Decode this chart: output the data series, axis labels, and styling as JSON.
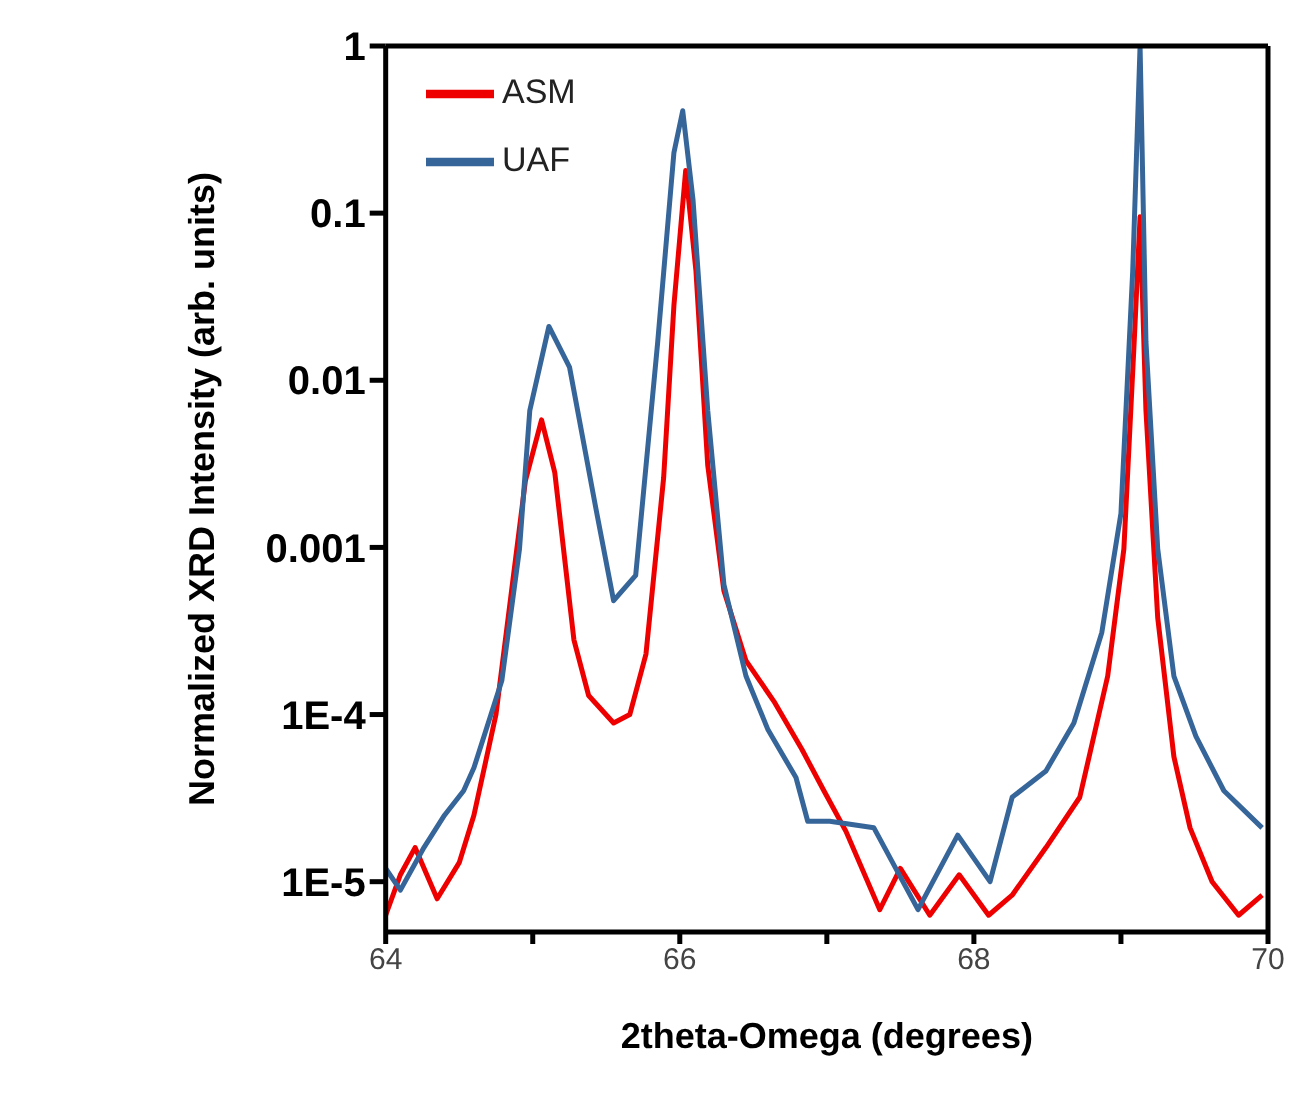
{
  "chart_data": {
    "type": "line",
    "xlabel": "2theta-Omega (degrees)",
    "ylabel": "Normalized XRD Intensity (arb. units)",
    "log": "y",
    "xlim": [
      64,
      70
    ],
    "ylim": [
      5e-06,
      1
    ],
    "xticks": [
      64,
      {
        "value": 65,
        "label": null
      },
      66,
      {
        "value": 67,
        "label": null
      },
      68,
      {
        "value": 69,
        "label": null
      },
      70
    ],
    "yticks": [
      {
        "value": 1e-05,
        "label": "1E-5"
      },
      {
        "value": 0.0001,
        "label": "1E-4"
      },
      0.001,
      0.01,
      0.1,
      1
    ],
    "legend": "top left",
    "marker": "none",
    "line_style": "solid",
    "series": [
      {
        "name": "ASM",
        "color": "#ee0000",
        "x": [
          64.0,
          64.1,
          64.2,
          64.35,
          64.5,
          64.6,
          64.75,
          64.85,
          64.95,
          65.06,
          65.15,
          65.28,
          65.38,
          65.55,
          65.66,
          65.77,
          65.89,
          65.96,
          66.04,
          66.11,
          66.19,
          66.3,
          66.45,
          66.64,
          66.83,
          66.98,
          67.13,
          67.36,
          67.5,
          67.7,
          67.9,
          68.1,
          68.26,
          68.49,
          68.72,
          68.91,
          69.02,
          69.09,
          69.13,
          69.17,
          69.25,
          69.36,
          69.47,
          69.62,
          69.8,
          69.96
        ],
        "values": [
          6.3e-06,
          1.1e-05,
          1.6e-05,
          7.9e-06,
          1.3e-05,
          2.5e-05,
          0.0001,
          0.0005,
          0.0025,
          0.0058,
          0.0028,
          0.00028,
          0.00013,
          8.9e-05,
          0.0001,
          0.00023,
          0.0026,
          0.028,
          0.18,
          0.045,
          0.0031,
          0.00055,
          0.00021,
          0.00012,
          6.2e-05,
          3.5e-05,
          2e-05,
          6.8e-06,
          1.2e-05,
          6.3e-06,
          1.1e-05,
          6.3e-06,
          8.3e-06,
          1.6e-05,
          3.2e-05,
          0.00017,
          0.00098,
          0.017,
          0.095,
          0.0066,
          0.00038,
          5.6e-05,
          2.1e-05,
          1e-05,
          6.3e-06,
          8.3e-06
        ]
      },
      {
        "name": "UAF",
        "color": "#36659a",
        "x": [
          64.0,
          64.1,
          64.26,
          64.4,
          64.53,
          64.6,
          64.79,
          64.91,
          64.98,
          65.11,
          65.25,
          65.43,
          65.55,
          65.7,
          65.85,
          65.96,
          66.02,
          66.09,
          66.19,
          66.3,
          66.45,
          66.6,
          66.79,
          66.87,
          67.02,
          67.32,
          67.62,
          67.89,
          68.11,
          68.26,
          68.49,
          68.68,
          68.87,
          69.0,
          69.08,
          69.13,
          69.17,
          69.25,
          69.36,
          69.51,
          69.7,
          69.96
        ],
        "values": [
          1.2e-05,
          8.9e-06,
          1.6e-05,
          2.5e-05,
          3.5e-05,
          4.8e-05,
          0.00016,
          0.00098,
          0.0066,
          0.021,
          0.012,
          0.0017,
          0.00048,
          0.00068,
          0.017,
          0.23,
          0.41,
          0.12,
          0.0066,
          0.0006,
          0.00017,
          8.1e-05,
          4.2e-05,
          2.3e-05,
          2.3e-05,
          2.1e-05,
          6.8e-06,
          1.9e-05,
          1e-05,
          3.2e-05,
          4.6e-05,
          8.9e-05,
          0.00031,
          0.0016,
          0.045,
          1,
          0.017,
          0.00098,
          0.00017,
          7.4e-05,
          3.5e-05,
          2.1e-05
        ]
      }
    ]
  }
}
